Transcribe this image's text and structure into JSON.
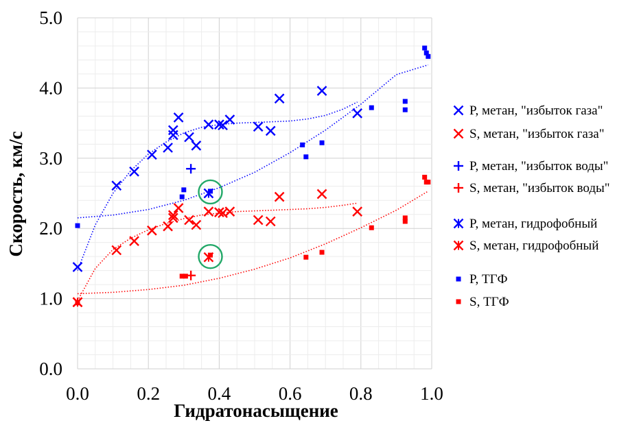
{
  "chart_data": {
    "type": "scatter",
    "xlabel": "Гидратонасыщение",
    "ylabel": "Скорость, км/с",
    "xlim": [
      0,
      1
    ],
    "ylim": [
      0,
      5
    ],
    "x_ticks": [
      "0.0",
      "0.2",
      "0.4",
      "0.6",
      "0.8",
      "1.0"
    ],
    "y_ticks": [
      "0.0",
      "1.0",
      "2.0",
      "3.0",
      "4.0",
      "5.0"
    ],
    "grid": true,
    "legend_position": "right",
    "series": [
      {
        "name": "P, метан, \"избыток газа\"",
        "marker": "x",
        "color": "#0000ff",
        "points": [
          [
            0.0,
            1.45
          ],
          [
            0.11,
            2.61
          ],
          [
            0.16,
            2.81
          ],
          [
            0.21,
            3.05
          ],
          [
            0.255,
            3.15
          ],
          [
            0.27,
            3.4
          ],
          [
            0.27,
            3.33
          ],
          [
            0.285,
            3.58
          ],
          [
            0.315,
            3.3
          ],
          [
            0.335,
            3.18
          ],
          [
            0.37,
            3.48
          ],
          [
            0.4,
            3.48
          ],
          [
            0.41,
            3.47
          ],
          [
            0.43,
            3.55
          ],
          [
            0.51,
            3.45
          ],
          [
            0.545,
            3.39
          ],
          [
            0.57,
            3.85
          ],
          [
            0.69,
            3.96
          ],
          [
            0.79,
            3.64
          ]
        ]
      },
      {
        "name": "S, метан, \"избыток газа\"",
        "marker": "x",
        "color": "#ff0000",
        "points": [
          [
            0.0,
            0.95
          ],
          [
            0.11,
            1.69
          ],
          [
            0.16,
            1.82
          ],
          [
            0.21,
            1.97
          ],
          [
            0.255,
            2.03
          ],
          [
            0.27,
            2.15
          ],
          [
            0.27,
            2.19
          ],
          [
            0.285,
            2.29
          ],
          [
            0.315,
            2.12
          ],
          [
            0.335,
            2.05
          ],
          [
            0.37,
            2.24
          ],
          [
            0.4,
            2.23
          ],
          [
            0.41,
            2.22
          ],
          [
            0.43,
            2.24
          ],
          [
            0.51,
            2.12
          ],
          [
            0.545,
            2.1
          ],
          [
            0.57,
            2.45
          ],
          [
            0.69,
            2.49
          ],
          [
            0.79,
            2.24
          ]
        ]
      },
      {
        "name": "P, метан, \"избыток воды\"",
        "marker": "plus",
        "color": "#0000ff",
        "points": [
          [
            0.32,
            2.85
          ]
        ]
      },
      {
        "name": "S, метан, \"избыток воды\"",
        "marker": "plus",
        "color": "#ff0000",
        "points": [
          [
            0.32,
            1.33
          ]
        ]
      },
      {
        "name": "P, метан, гидрофобный",
        "marker": "star",
        "color": "#0000ff",
        "points": [
          [
            0.37,
            2.5
          ]
        ]
      },
      {
        "name": "S, метан, гидрофобный",
        "marker": "star",
        "color": "#ff0000",
        "points": [
          [
            0.0,
            0.95
          ],
          [
            0.37,
            1.59
          ]
        ]
      },
      {
        "name": "P, ТГФ",
        "marker": "square",
        "color": "#0000ff",
        "points": [
          [
            0.0,
            2.04
          ],
          [
            0.3,
            2.55
          ],
          [
            0.295,
            2.45
          ],
          [
            0.375,
            2.53
          ],
          [
            0.635,
            3.19
          ],
          [
            0.645,
            3.02
          ],
          [
            0.69,
            3.22
          ],
          [
            0.83,
            3.72
          ],
          [
            0.925,
            3.81
          ],
          [
            0.925,
            3.69
          ],
          [
            0.98,
            4.57
          ],
          [
            0.985,
            4.5
          ],
          [
            0.99,
            4.45
          ]
        ]
      },
      {
        "name": "S, ТГФ",
        "marker": "square",
        "color": "#ff0000",
        "points": [
          [
            0.0,
            0.94
          ],
          [
            0.295,
            1.32
          ],
          [
            0.305,
            1.32
          ],
          [
            0.375,
            1.62
          ],
          [
            0.645,
            1.59
          ],
          [
            0.69,
            1.66
          ],
          [
            0.83,
            2.01
          ],
          [
            0.925,
            2.15
          ],
          [
            0.925,
            2.1
          ],
          [
            0.98,
            2.73
          ],
          [
            0.985,
            2.66
          ],
          [
            0.99,
            2.66
          ]
        ]
      }
    ],
    "trendlines": [
      {
        "color": "#0000ff",
        "points": [
          [
            0.0,
            1.4
          ],
          [
            0.05,
            2.05
          ],
          [
            0.1,
            2.5
          ],
          [
            0.15,
            2.82
          ],
          [
            0.2,
            3.06
          ],
          [
            0.25,
            3.23
          ],
          [
            0.3,
            3.36
          ],
          [
            0.35,
            3.44
          ],
          [
            0.4,
            3.48
          ],
          [
            0.45,
            3.5
          ],
          [
            0.5,
            3.51
          ],
          [
            0.55,
            3.52
          ],
          [
            0.6,
            3.53
          ],
          [
            0.65,
            3.56
          ],
          [
            0.7,
            3.61
          ],
          [
            0.75,
            3.7
          ],
          [
            0.79,
            3.8
          ]
        ]
      },
      {
        "color": "#ff0000",
        "points": [
          [
            0.0,
            0.97
          ],
          [
            0.05,
            1.43
          ],
          [
            0.1,
            1.7
          ],
          [
            0.15,
            1.86
          ],
          [
            0.2,
            1.98
          ],
          [
            0.25,
            2.07
          ],
          [
            0.3,
            2.14
          ],
          [
            0.35,
            2.19
          ],
          [
            0.4,
            2.22
          ],
          [
            0.45,
            2.24
          ],
          [
            0.5,
            2.25
          ],
          [
            0.55,
            2.26
          ],
          [
            0.6,
            2.27
          ],
          [
            0.65,
            2.28
          ],
          [
            0.7,
            2.3
          ],
          [
            0.75,
            2.33
          ],
          [
            0.79,
            2.36
          ]
        ]
      },
      {
        "color": "#0000ff",
        "points": [
          [
            0.0,
            2.15
          ],
          [
            0.1,
            2.19
          ],
          [
            0.2,
            2.27
          ],
          [
            0.3,
            2.4
          ],
          [
            0.4,
            2.58
          ],
          [
            0.5,
            2.8
          ],
          [
            0.6,
            3.08
          ],
          [
            0.7,
            3.4
          ],
          [
            0.8,
            3.77
          ],
          [
            0.9,
            4.19
          ],
          [
            0.99,
            4.33
          ]
        ]
      },
      {
        "color": "#ff0000",
        "points": [
          [
            0.0,
            1.07
          ],
          [
            0.1,
            1.09
          ],
          [
            0.2,
            1.13
          ],
          [
            0.3,
            1.19
          ],
          [
            0.4,
            1.29
          ],
          [
            0.5,
            1.42
          ],
          [
            0.6,
            1.58
          ],
          [
            0.7,
            1.78
          ],
          [
            0.8,
            2.01
          ],
          [
            0.9,
            2.26
          ],
          [
            0.99,
            2.53
          ]
        ]
      }
    ],
    "highlight_circles": [
      {
        "x": 0.375,
        "y": 2.52,
        "color": "#22a868"
      },
      {
        "x": 0.375,
        "y": 1.6,
        "color": "#22a868"
      }
    ]
  }
}
